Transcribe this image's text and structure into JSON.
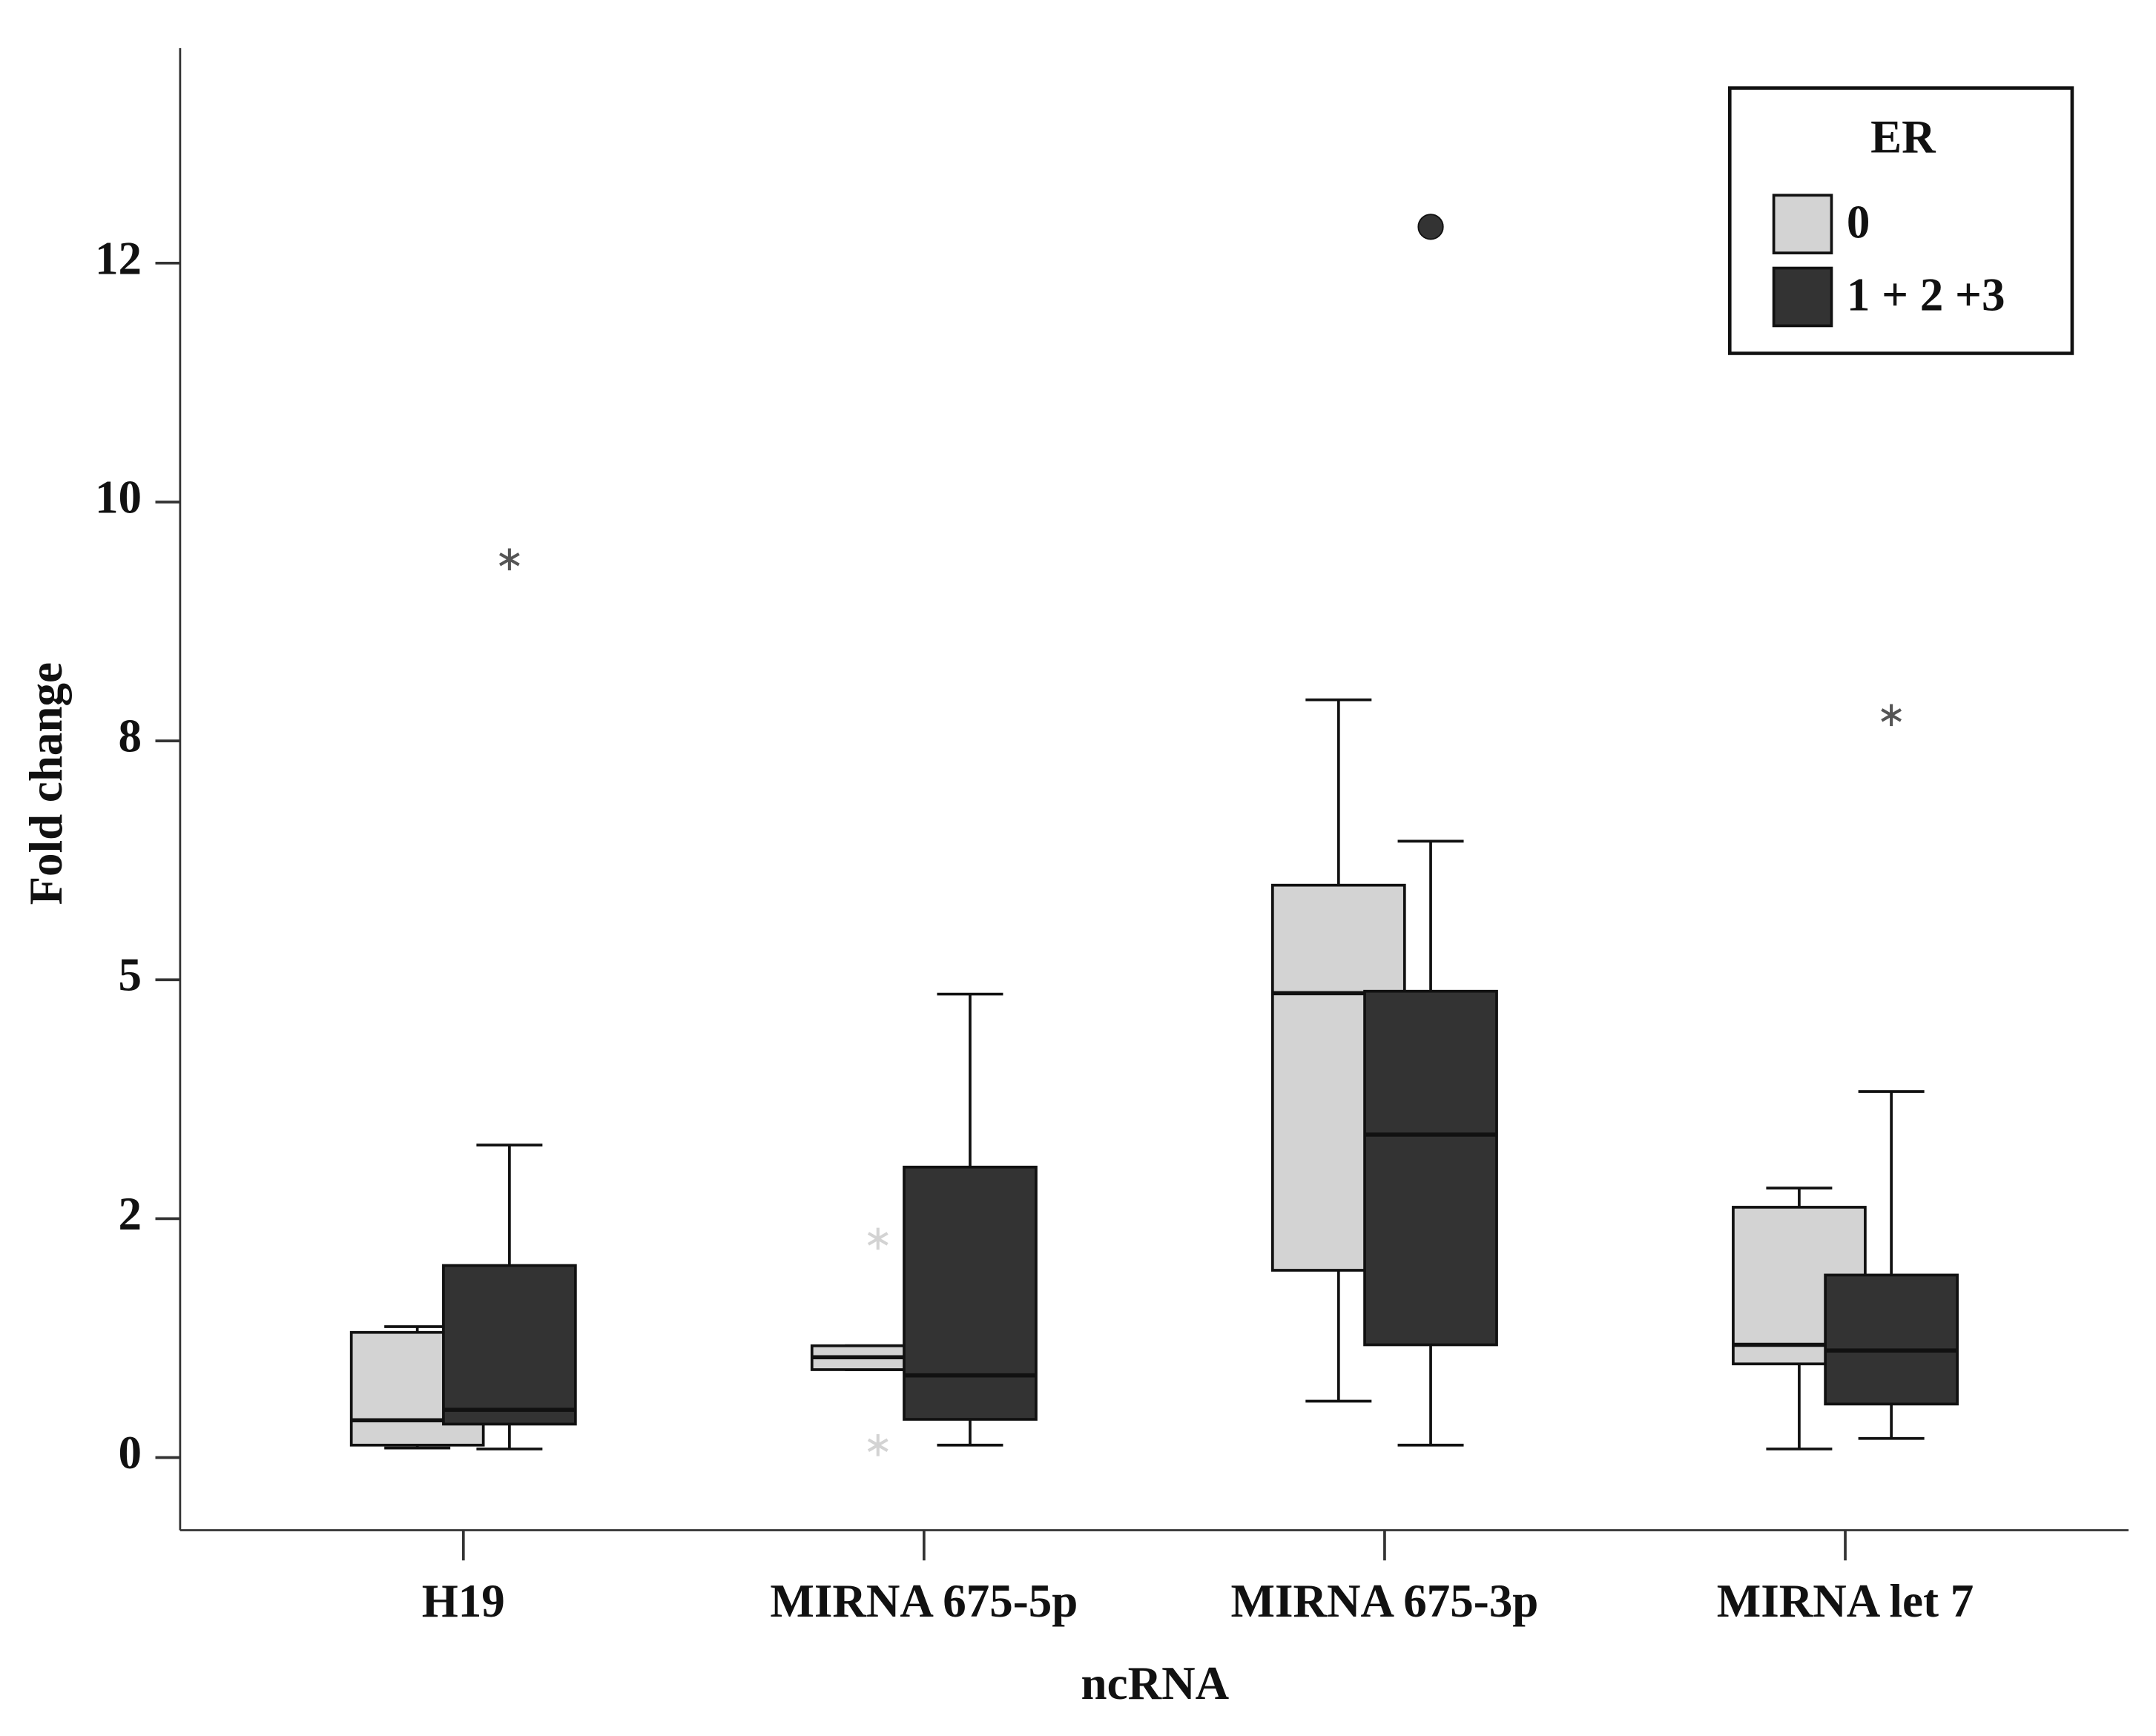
{
  "chart_data": {
    "type": "box",
    "x_label": "ncRNA",
    "y_label": "Fold change",
    "categories": [
      "H19",
      "MIRNA 675-5p",
      "MIRNA 675-3p",
      "MIRNA let 7"
    ],
    "ylim": [
      -0.76,
      14.75
    ],
    "yticks": [
      0,
      {
        "value": 2.5,
        "label": "2"
      },
      5,
      {
        "value": 7.5,
        "label": "8"
      },
      10,
      {
        "value": 12.5,
        "label": "12"
      }
    ],
    "legend_title": "ER",
    "legend_position": "upper right",
    "series": [
      {
        "name": "0",
        "color": "#d3d3d3",
        "min": [
          0.1,
          0.92,
          0.59,
          0.09
        ],
        "q1": [
          0.13,
          0.92,
          1.96,
          0.98
        ],
        "median": [
          0.39,
          1.05,
          4.86,
          1.18
        ],
        "q3": [
          1.31,
          1.17,
          5.99,
          2.62
        ],
        "max": [
          1.37,
          1.17,
          7.93,
          2.82
        ],
        "outliers": [
          {
            "category": "MIRNA 675-5p",
            "value": 2.29,
            "marker": "star"
          },
          {
            "category": "MIRNA 675-5p",
            "value": 0.13,
            "marker": "star"
          }
        ]
      },
      {
        "name": "1 + 2 +3",
        "color": "#333333",
        "min": [
          0.09,
          0.13,
          0.13,
          0.2
        ],
        "q1": [
          0.35,
          0.4,
          1.18,
          0.56
        ],
        "median": [
          0.5,
          0.86,
          3.38,
          1.12
        ],
        "q3": [
          2.01,
          3.04,
          4.88,
          1.91
        ],
        "max": [
          3.27,
          4.85,
          6.45,
          3.83
        ],
        "outliers": [
          {
            "category": "H19",
            "value": 9.4,
            "marker": "star"
          },
          {
            "category": "MIRNA 675-3p",
            "value": 12.88,
            "marker": "circle"
          },
          {
            "category": "MIRNA let 7",
            "value": 7.77,
            "marker": "star"
          }
        ]
      }
    ]
  }
}
